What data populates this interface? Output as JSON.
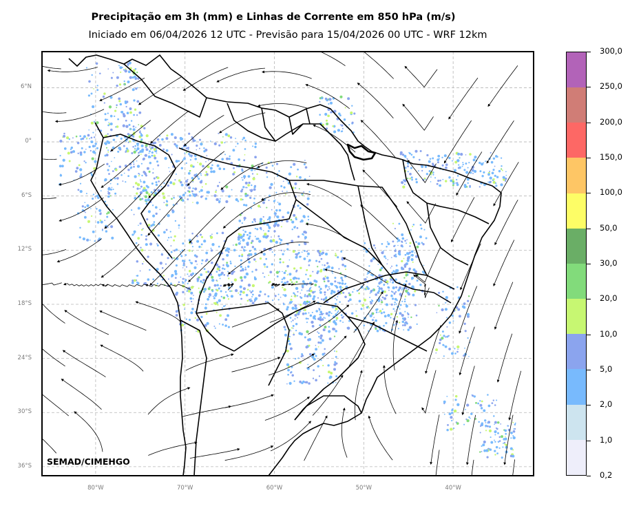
{
  "header": {
    "title": "Precipitação em 3h (mm) e Linhas de Corrente em 850 hPa (m/s)",
    "subtitle": "Iniciado em 06/04/2026 12 UTC - Previsão para 15/04/2026 00 UTC - WRF 12km"
  },
  "map": {
    "credit": "SEMAD/CIMEHGO",
    "lon_range": [
      -86,
      -31
    ],
    "lat_range": [
      -37,
      10
    ],
    "lat_ticks": [
      {
        "value": 6,
        "label": "6°N"
      },
      {
        "value": 0,
        "label": "0°"
      },
      {
        "value": -6,
        "label": "6°S"
      },
      {
        "value": -12,
        "label": "12°S"
      },
      {
        "value": -18,
        "label": "18°S"
      },
      {
        "value": -24,
        "label": "24°S"
      },
      {
        "value": -30,
        "label": "30°S"
      },
      {
        "value": -36,
        "label": "36°S"
      }
    ],
    "lon_ticks": [
      {
        "value": -80,
        "label": "80°W"
      },
      {
        "value": -70,
        "label": "70°W"
      },
      {
        "value": -60,
        "label": "60°W"
      },
      {
        "value": -50,
        "label": "50°W"
      },
      {
        "value": -40,
        "label": "40°W"
      }
    ],
    "gridlines": true,
    "colors": {
      "coastline": "#000000",
      "streamline": "#000000",
      "grid": "#b5b5b5"
    }
  },
  "colorbar": {
    "levels": [
      "0,2",
      "1,0",
      "2,0",
      "5,0",
      "10,0",
      "20,0",
      "30,0",
      "50,0",
      "100,0",
      "150,0",
      "200,0",
      "250,0",
      "300,0"
    ],
    "colors": [
      "#eeeefa",
      "#cde4ef",
      "#78bafd",
      "#8ba4ee",
      "#c7f772",
      "#82db7b",
      "#6aae66",
      "#fdfd66",
      "#fec665",
      "#fd6865",
      "#d07d76",
      "#b263b8"
    ]
  }
}
